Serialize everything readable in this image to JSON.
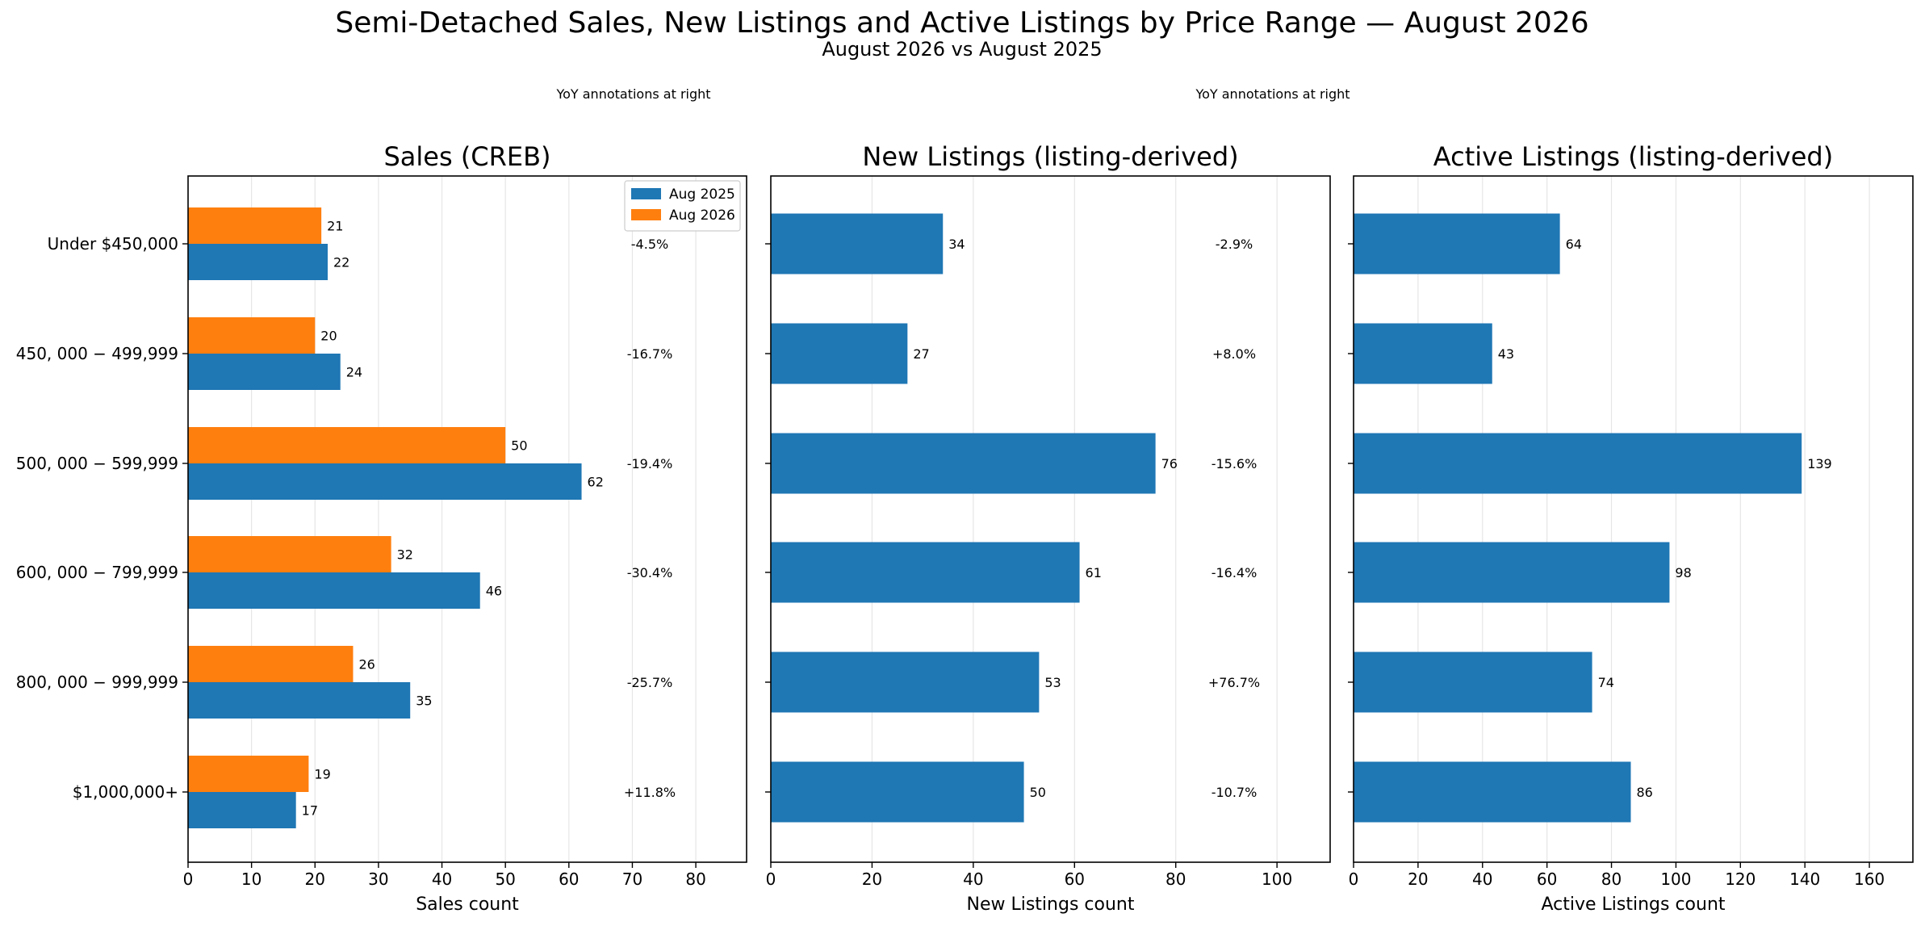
{
  "figure": {
    "title": "Semi-Detached Sales, New Listings and Active Listings by Price Range — August 2026",
    "subtitle": "August 2026 vs August 2025"
  },
  "categories": [
    "Under $450,000",
    "450, 000 − 499,999",
    "500, 000 − 599,999",
    "600, 000 − 799,999",
    "800, 000 − 999,999",
    "$1,000,000+"
  ],
  "colors": {
    "blue": "#1f77b4",
    "orange": "#ff7f0e",
    "grid": "#e6e6e6",
    "axis": "#000000"
  },
  "chart_data": [
    {
      "type": "bar",
      "orientation": "horizontal",
      "title": "Sales (CREB)",
      "xlabel": "Sales count",
      "xlim": [
        0,
        88
      ],
      "xticks": [
        0,
        10,
        20,
        30,
        40,
        50,
        60,
        70,
        80
      ],
      "grid": true,
      "legend": "top-right",
      "annotation_note": "YoY annotations at right",
      "categories": [
        "Under $450,000",
        "450, 000 − 499,999",
        "500, 000 − 599,999",
        "600, 000 − 799,999",
        "800, 000 − 999,999",
        "$1,000,000+"
      ],
      "series": [
        {
          "name": "Aug 2025",
          "color": "#1f77b4",
          "values": [
            22,
            24,
            62,
            46,
            35,
            17
          ]
        },
        {
          "name": "Aug 2026",
          "color": "#ff7f0e",
          "values": [
            21,
            20,
            50,
            32,
            26,
            19
          ]
        }
      ],
      "yoy": [
        "-4.5%",
        "-16.7%",
        "-19.4%",
        "-30.4%",
        "-25.7%",
        "+11.8%"
      ]
    },
    {
      "type": "bar",
      "orientation": "horizontal",
      "title": "New Listings (listing-derived)",
      "xlabel": "New Listings count",
      "xlim": [
        0,
        110.5
      ],
      "xticks": [
        0,
        20,
        40,
        60,
        80,
        100
      ],
      "grid": true,
      "annotation_note": "YoY annotations at right",
      "categories": [
        "Under $450,000",
        "450, 000 − 499,999",
        "500, 000 − 599,999",
        "600, 000 − 799,999",
        "800, 000 − 999,999",
        "$1,000,000+"
      ],
      "series": [
        {
          "color": "#1f77b4",
          "values": [
            34,
            27,
            76,
            61,
            53,
            50
          ]
        }
      ],
      "yoy": [
        "-2.9%",
        "+8.0%",
        "-15.6%",
        "-16.4%",
        "+76.7%",
        "-10.7%"
      ]
    },
    {
      "type": "bar",
      "orientation": "horizontal",
      "title": "Active Listings (listing-derived)",
      "xlabel": "Active Listings count",
      "xlim": [
        0,
        173.5
      ],
      "xticks": [
        0,
        20,
        40,
        60,
        80,
        100,
        120,
        140,
        160
      ],
      "grid": true,
      "categories": [
        "Under $450,000",
        "450, 000 − 499,999",
        "500, 000 − 599,999",
        "600, 000 − 799,999",
        "800, 000 − 999,999",
        "$1,000,000+"
      ],
      "series": [
        {
          "color": "#1f77b4",
          "values": [
            64,
            43,
            139,
            98,
            74,
            86
          ]
        }
      ]
    }
  ]
}
